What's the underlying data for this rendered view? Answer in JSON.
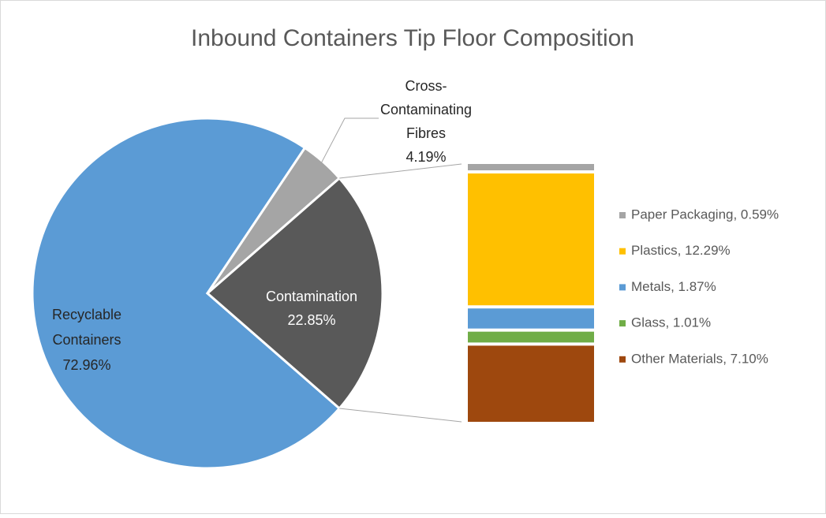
{
  "chart_data": {
    "type": "pie-of-bar",
    "title": "Inbound Containers Tip Floor Composition",
    "label_lines": [
      [
        "Recyclable",
        "Containers"
      ],
      [
        "Cross-",
        "Contaminating",
        "Fibres"
      ],
      [
        "Contamination"
      ]
    ],
    "values": [
      72.96,
      4.19,
      22.85
    ],
    "value_labels": [
      "72.96%",
      "4.19%",
      "22.85%"
    ],
    "colors": [
      "#5b9bd5",
      "#a5a5a5",
      "#595959"
    ],
    "breakdown": {
      "labels": [
        "Paper Packaging, 0.59%",
        "Plastics, 12.29%",
        "Metals, 1.87%",
        "Glass, 1.01%",
        "Other Materials, 7.10%"
      ],
      "values": [
        0.59,
        12.29,
        1.87,
        1.01,
        7.1
      ],
      "colors": [
        "#a5a5a5",
        "#ffc000",
        "#5b9bd5",
        "#70ad47",
        "#9e480e"
      ]
    },
    "legend": "right"
  }
}
